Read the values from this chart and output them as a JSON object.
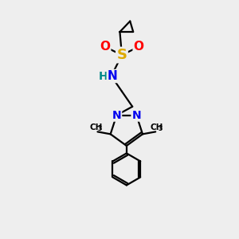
{
  "bg_color": "#eeeeee",
  "atom_colors": {
    "C": "#000000",
    "N": "#0000ee",
    "O": "#ff0000",
    "S": "#ddaa00",
    "H": "#008888"
  },
  "bond_color": "#000000",
  "bond_width": 1.6,
  "fig_size": [
    3.0,
    3.0
  ],
  "dpi": 100
}
